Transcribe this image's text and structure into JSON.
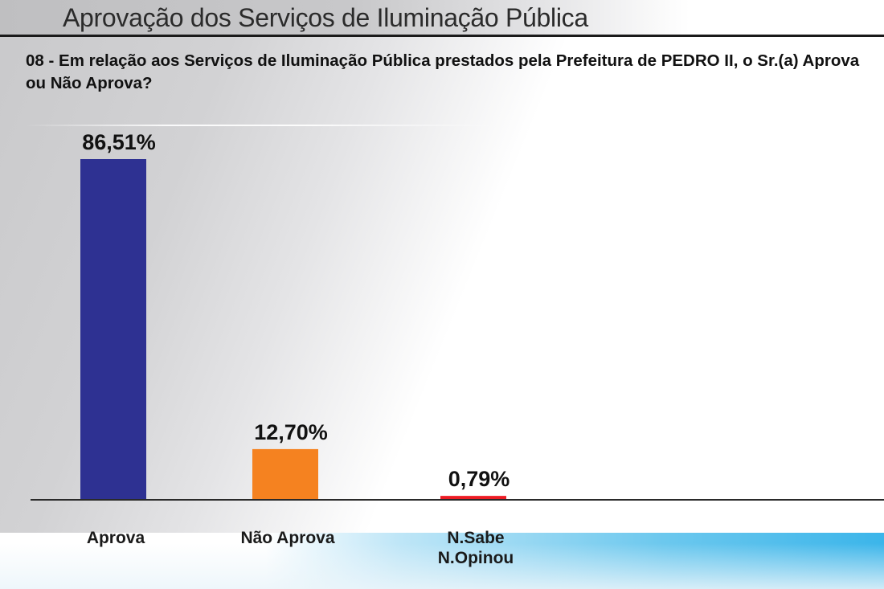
{
  "header": {
    "title": "Aprovação dos Serviços de Iluminação Pública",
    "question": "08 - Em relação aos Serviços de Iluminação Pública prestados pela Prefeitura de PEDRO II, o Sr.(a) Aprova ou Não Aprova?"
  },
  "chart_data": {
    "type": "bar",
    "title": "Aprovação dos Serviços de Iluminação Pública",
    "subtitle": "08 - Em relação aos Serviços de Iluminação Pública prestados pela Prefeitura de PEDRO II, o Sr.(a) Aprova ou Não Aprova?",
    "categories": [
      "Aprova",
      "Não Aprova",
      "N.Sabe\nN.Opinou"
    ],
    "values": [
      86.51,
      12.7,
      0.79
    ],
    "value_labels": [
      "86,51%",
      "12,70%",
      "0,79%"
    ],
    "colors": [
      "#2e3192",
      "#f58220",
      "#ed1c24"
    ],
    "xlabel": "",
    "ylabel": "",
    "ylim": [
      0,
      100
    ],
    "grid": false,
    "legend": "none"
  }
}
